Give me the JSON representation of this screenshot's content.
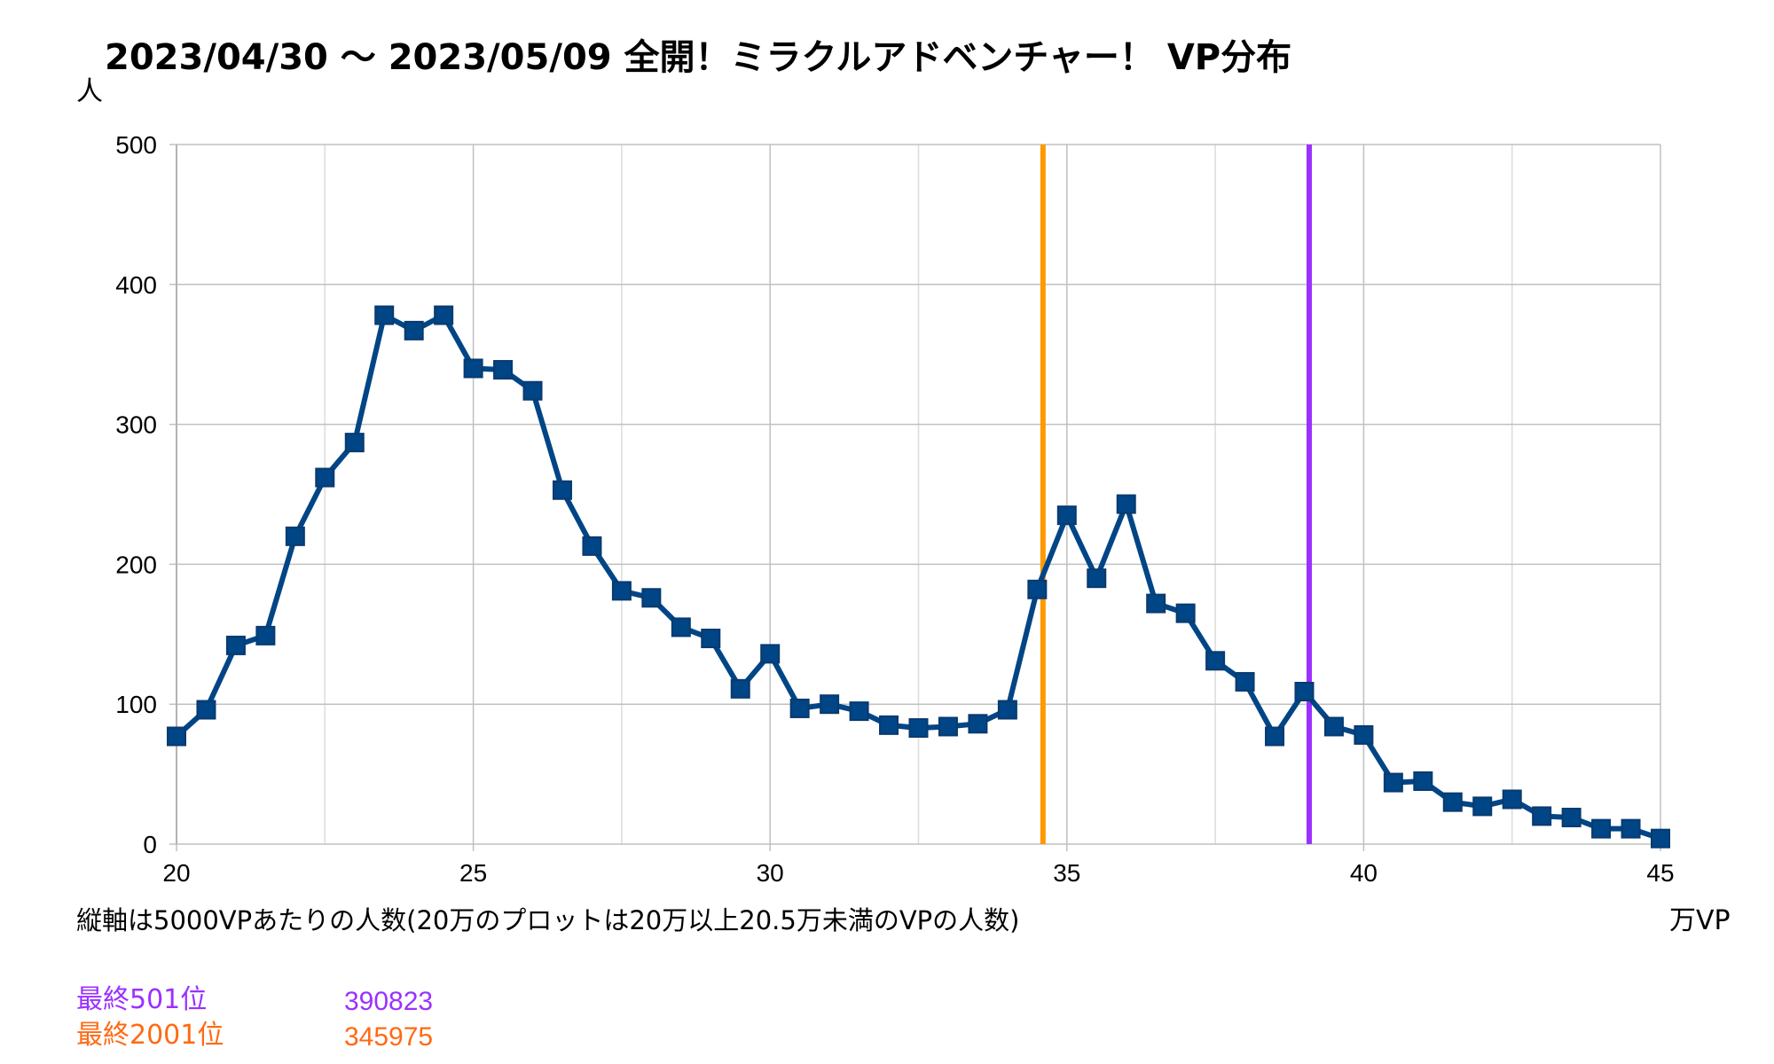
{
  "chart_data": {
    "type": "line",
    "title": "2023/04/30 ～ 2023/05/09 全開！ミラクルアドベンチャー！ VP分布",
    "ylabel": "人",
    "xlabel": "万VP",
    "note": "縦軸は5000VPあたりの人数(20万のプロットは20万以上20.5万未満のVPの人数)",
    "xlim": [
      20,
      45
    ],
    "ylim": [
      0,
      500
    ],
    "x_ticks": [
      20,
      25,
      30,
      35,
      40,
      45
    ],
    "y_ticks": [
      0,
      100,
      200,
      300,
      400,
      500
    ],
    "grid": true,
    "series": [
      {
        "color": "#004586",
        "x": [
          20,
          20.5,
          21,
          21.5,
          22,
          22.5,
          23,
          23.5,
          24,
          24.5,
          25,
          25.5,
          26,
          26.5,
          27,
          27.5,
          28,
          28.5,
          29,
          29.5,
          30,
          30.5,
          31,
          31.5,
          32,
          32.5,
          33,
          33.5,
          34,
          34.5,
          35,
          35.5,
          36,
          36.5,
          37,
          37.5,
          38,
          38.5,
          39,
          39.5,
          40,
          40.5,
          41,
          41.5,
          42,
          42.5,
          43,
          43.5,
          44,
          44.5,
          45
        ],
        "values": [
          77,
          96,
          142,
          149,
          220,
          262,
          287,
          378,
          367,
          378,
          340,
          339,
          324,
          253,
          213,
          181,
          176,
          155,
          147,
          111,
          136,
          97,
          100,
          95,
          85,
          83,
          84,
          86,
          96,
          182,
          235,
          190,
          243,
          172,
          165,
          131,
          116,
          77,
          109,
          84,
          78,
          44,
          45,
          30,
          27,
          32,
          20,
          19,
          11,
          11,
          4
        ]
      }
    ],
    "reference_lines": [
      {
        "label": "最終501位",
        "value": 390823,
        "x": 39.0823,
        "color": "#9b30ff",
        "text_color": "#9b30ff"
      },
      {
        "label": "最終2001位",
        "value": 345975,
        "x": 34.5975,
        "color": "#ff9900",
        "text_color": "#ff6a13"
      }
    ],
    "colors": {
      "series": "#004586",
      "grid": "#c0c0c0",
      "minor_grid": "#dcdcdc"
    }
  }
}
